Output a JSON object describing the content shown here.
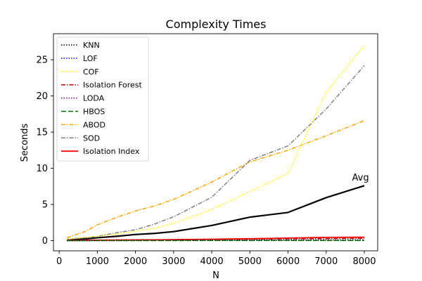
{
  "chart_data": {
    "type": "line",
    "title": "Complexity Times",
    "xlabel": "N",
    "ylabel": "Seconds",
    "xlim": [
      -150,
      8350
    ],
    "ylim": [
      -1.4,
      28.6
    ],
    "xticks": [
      0,
      1000,
      2000,
      3000,
      4000,
      5000,
      6000,
      7000,
      8000
    ],
    "yticks": [
      0,
      5,
      10,
      15,
      20,
      25
    ],
    "grid": false,
    "legend_position": "upper-left",
    "x": [
      200,
      700,
      1000,
      1500,
      2000,
      2500,
      3000,
      4000,
      5000,
      6000,
      7000,
      8000
    ],
    "series": [
      {
        "name": "KNN",
        "color": "#000000",
        "dash": "1.5,2",
        "width": 1.5,
        "values": [
          0.01,
          0.01,
          0.02,
          0.02,
          0.03,
          0.03,
          0.04,
          0.05,
          0.06,
          0.07,
          0.08,
          0.09
        ]
      },
      {
        "name": "LOF",
        "color": "#0000ff",
        "dash": "1.5,2",
        "width": 1.5,
        "values": [
          0.01,
          0.01,
          0.02,
          0.02,
          0.03,
          0.03,
          0.04,
          0.05,
          0.06,
          0.07,
          0.08,
          0.09
        ]
      },
      {
        "name": "COF",
        "color": "#ffff00",
        "dash": "1.5,2",
        "width": 1.5,
        "values": [
          0.2,
          0.5,
          0.6,
          0.9,
          1.3,
          1.7,
          2.4,
          4.3,
          6.8,
          9.3,
          20.5,
          27.0
        ]
      },
      {
        "name": "Isolation Forest",
        "color": "#b00000",
        "dash": "6,2,1.5,2",
        "width": 1.5,
        "values": [
          0.05,
          0.07,
          0.08,
          0.1,
          0.11,
          0.12,
          0.14,
          0.17,
          0.2,
          0.24,
          0.28,
          0.32
        ]
      },
      {
        "name": "LODA",
        "color": "#800080",
        "dash": "1.5,2",
        "width": 1.5,
        "values": [
          0.02,
          0.02,
          0.03,
          0.03,
          0.04,
          0.04,
          0.05,
          0.06,
          0.07,
          0.08,
          0.09,
          0.1
        ]
      },
      {
        "name": "HBOS",
        "color": "#007000",
        "dash": "7,3",
        "width": 1.5,
        "values": [
          0.01,
          0.01,
          0.01,
          0.01,
          0.01,
          0.01,
          0.01,
          0.02,
          0.02,
          0.02,
          0.02,
          0.02
        ]
      },
      {
        "name": "ABOD",
        "color": "#ffa500",
        "dash": "6,2,1.5,2",
        "width": 1.5,
        "values": [
          0.4,
          1.3,
          2.2,
          3.2,
          4.1,
          4.8,
          5.7,
          8.1,
          10.9,
          12.5,
          14.5,
          16.6
        ]
      },
      {
        "name": "SOD",
        "color": "#808080",
        "dash": "6,2,1.5,2",
        "width": 1.5,
        "values": [
          0.2,
          0.4,
          0.6,
          1.1,
          1.5,
          2.3,
          3.3,
          6.0,
          11.1,
          13.1,
          18.2,
          24.2
        ]
      },
      {
        "name": "Isolation Index",
        "color": "#ff0000",
        "dash": "",
        "width": 1.8,
        "values": [
          0.02,
          0.05,
          0.06,
          0.08,
          0.1,
          0.12,
          0.14,
          0.2,
          0.27,
          0.36,
          0.46,
          0.48
        ]
      }
    ],
    "extra_lines": [
      {
        "label": "Avg",
        "color": "#000000",
        "dash": "",
        "width": 2.2,
        "values": [
          0.05,
          0.25,
          0.4,
          0.6,
          0.85,
          1.0,
          1.25,
          2.1,
          3.25,
          3.9,
          5.95,
          7.6
        ]
      }
    ],
    "annotations": [
      {
        "text": "Avg",
        "x": 7900,
        "y": 8.3
      }
    ]
  }
}
